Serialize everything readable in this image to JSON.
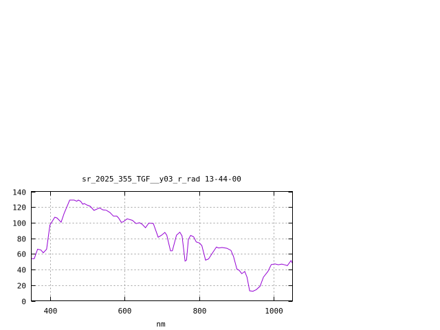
{
  "chart_data": {
    "type": "line",
    "title": "sr_2025_355_TGF__y03_r_rad 13-44-00",
    "xlabel": "nm",
    "ylabel": "",
    "xlim": [
      350,
      1050
    ],
    "ylim": [
      0,
      140
    ],
    "xticks": [
      400,
      600,
      800,
      1000
    ],
    "yticks": [
      0,
      20,
      40,
      60,
      80,
      100,
      120,
      140
    ],
    "grid": true,
    "legend": "none",
    "colors": {
      "line": "#9400d3",
      "grid": "#a0a0a0",
      "axis": "#000000"
    },
    "series": [
      {
        "x": [
          350,
          358,
          367,
          376,
          382,
          391,
          400,
          413,
          419,
          430,
          438,
          453,
          465,
          472,
          476,
          482,
          488,
          492,
          500,
          508,
          518,
          533,
          542,
          551,
          561,
          570,
          579,
          584,
          591,
          596,
          607,
          621,
          631,
          640,
          647,
          656,
          665,
          677,
          690,
          699,
          708,
          713,
          723,
          728,
          739,
          748,
          754,
          762,
          766,
          771,
          777,
          785,
          792,
          801,
          807,
          817,
          825,
          837,
          846,
          852,
          861,
          874,
          885,
          892,
          901,
          907,
          914,
          922,
          928,
          935,
          944,
          953,
          963,
          972,
          984,
          993,
          1003,
          1012,
          1021,
          1030,
          1036,
          1046,
          1050
        ],
        "y": [
          54,
          54,
          66,
          65,
          61.5,
          66,
          97,
          107,
          106,
          100.6,
          112,
          129,
          129,
          127.5,
          129,
          127.5,
          123.6,
          124.5,
          122.5,
          121,
          115.8,
          119,
          116.4,
          116,
          113,
          108.5,
          108.5,
          106,
          100.6,
          101,
          105,
          103,
          98.9,
          100,
          98,
          93.6,
          99.5,
          99,
          81.4,
          84,
          87.5,
          84,
          63.9,
          64,
          84,
          87.8,
          83,
          50.8,
          52,
          78.5,
          83.7,
          82,
          75.5,
          74,
          70.6,
          52,
          53.6,
          62.4,
          68.8,
          67.6,
          68.2,
          67.3,
          64.5,
          56.6,
          40.5,
          39,
          34.7,
          37.5,
          30.3,
          12.8,
          12.2,
          14.3,
          18.7,
          30.3,
          37.6,
          46.4,
          47.2,
          46.1,
          47,
          46,
          45,
          51.4,
          48
        ]
      }
    ]
  }
}
